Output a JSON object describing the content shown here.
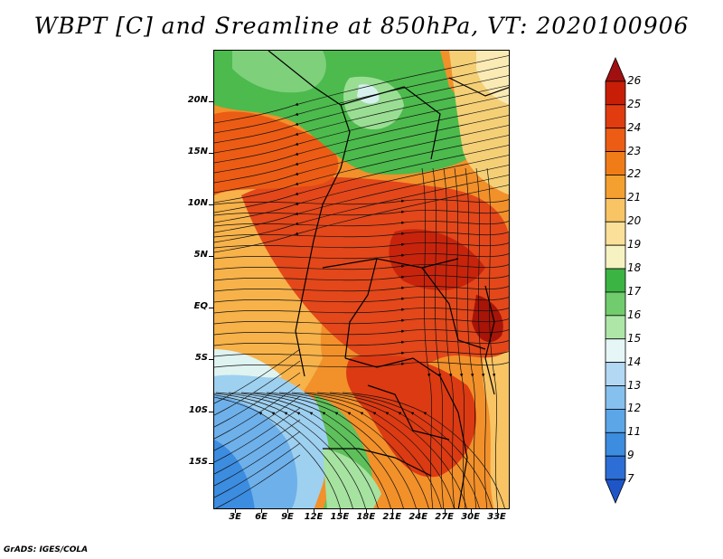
{
  "title": "WBPT [C] and Sreamline at 850hPa, VT: 2020100906",
  "footer": "GrADS: IGES/COLA",
  "map": {
    "lat_labels": [
      "20N",
      "15N",
      "10N",
      "5N",
      "EQ",
      "5S",
      "10S",
      "15S"
    ],
    "lon_labels": [
      "3E",
      "6E",
      "9E",
      "12E",
      "15E",
      "18E",
      "21E",
      "24E",
      "27E",
      "30E",
      "33E"
    ],
    "lat_values": [
      20,
      15,
      10,
      5,
      0,
      -5,
      -10,
      -15
    ],
    "lon_values": [
      3,
      6,
      9,
      12,
      15,
      18,
      21,
      24,
      27,
      30,
      33
    ],
    "lat_range": [
      -19.5,
      25
    ],
    "lon_range": [
      0.5,
      34.5
    ]
  },
  "colorbar": {
    "levels": [
      "26",
      "25",
      "24",
      "23",
      "22",
      "21",
      "20",
      "19",
      "18",
      "17",
      "16",
      "15",
      "14",
      "13",
      "12",
      "11",
      "9",
      "7"
    ],
    "colors": [
      "#a01010",
      "#c81e08",
      "#e03c10",
      "#ec5c14",
      "#f07c18",
      "#f4a030",
      "#f8c464",
      "#fae098",
      "#f6f2c2",
      "#3cb444",
      "#70cc6c",
      "#aee6a8",
      "#e6f6f6",
      "#b2d8f4",
      "#86c0ee",
      "#5ca6e8",
      "#3c8ce0",
      "#2c6ed6",
      "#1e56c8"
    ]
  }
}
